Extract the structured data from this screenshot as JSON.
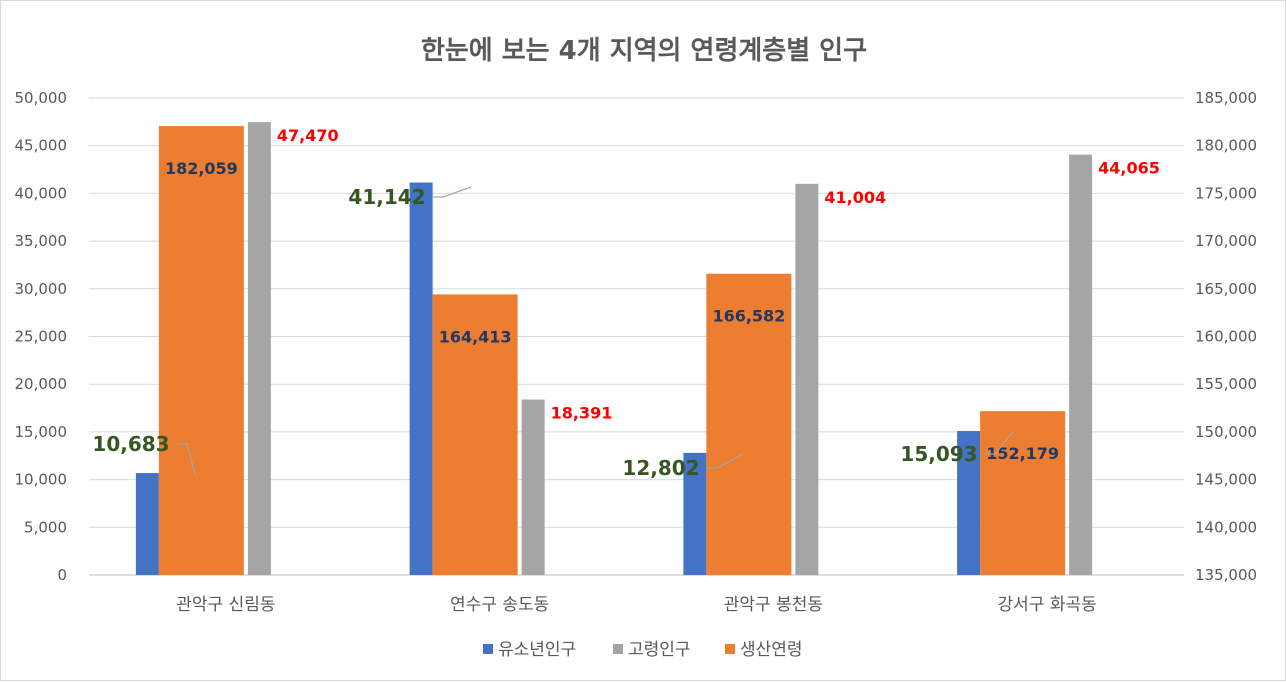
{
  "chart_data": {
    "type": "bar",
    "title": "한눈에 보는 4개 지역의 연령계층별 인구",
    "categories": [
      "관악구 신림동",
      "연수구 송도동",
      "관악구 봉천동",
      "강서구 화곡동"
    ],
    "series": [
      {
        "name": "유소년인구",
        "axis": "left",
        "color": "#4472c4",
        "values": [
          10683,
          41142,
          12802,
          15093
        ],
        "labels": [
          "10,683",
          "41,142",
          "12,802",
          "15,093"
        ]
      },
      {
        "name": "고령인구",
        "axis": "left",
        "color": "#a5a5a5",
        "values": [
          47470,
          18391,
          41004,
          44065
        ],
        "labels": [
          "47,470",
          "18,391",
          "41,004",
          "44,065"
        ]
      },
      {
        "name": "생산연령",
        "axis": "right",
        "color": "#ed7d31",
        "values": [
          182059,
          164413,
          166582,
          152179
        ],
        "labels": [
          "182,059",
          "164,413",
          "166,582",
          "152,179"
        ]
      }
    ],
    "y_left": {
      "min": 0,
      "max": 50000,
      "step": 5000,
      "ticks": [
        "0",
        "5,000",
        "10,000",
        "15,000",
        "20,000",
        "25,000",
        "30,000",
        "35,000",
        "40,000",
        "45,000",
        "50,000"
      ]
    },
    "y_right": {
      "min": 135000,
      "max": 185000,
      "step": 5000,
      "ticks": [
        "135,000",
        "140,000",
        "145,000",
        "150,000",
        "155,000",
        "160,000",
        "165,000",
        "170,000",
        "175,000",
        "180,000",
        "185,000"
      ]
    },
    "legend": {
      "position": "bottom",
      "items": [
        "유소년인구",
        "고령인구",
        "생산연령"
      ]
    },
    "grid": true
  }
}
